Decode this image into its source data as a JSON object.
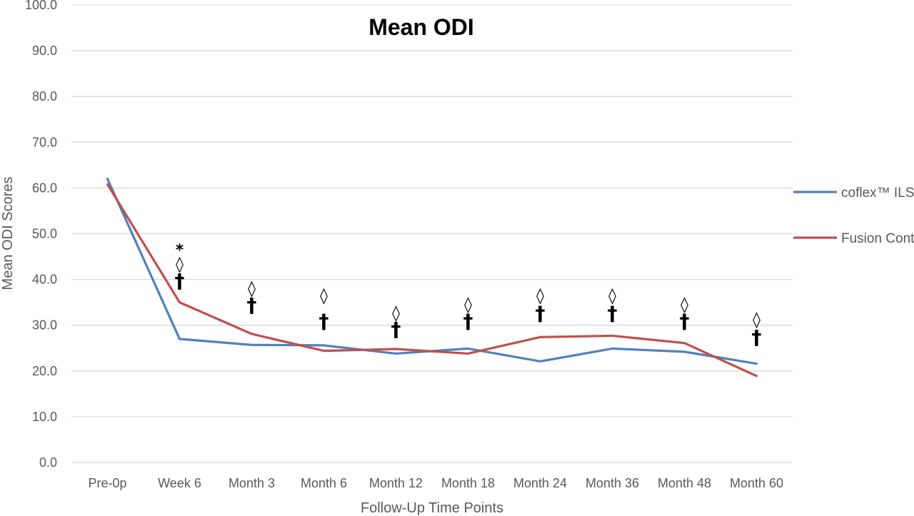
{
  "chart_data": {
    "type": "line",
    "title": "Mean ODI",
    "xlabel": "Follow-Up Time Points",
    "ylabel": "Mean ODI Scores",
    "ylim": [
      0,
      100
    ],
    "y_ticks": [
      "0.0",
      "10.0",
      "20.0",
      "30.0",
      "40.0",
      "50.0",
      "60.0",
      "70.0",
      "80.0",
      "90.0",
      "100.0"
    ],
    "grid": true,
    "legend_position": "right",
    "categories": [
      "Pre-0p",
      "Week 6",
      "Month 3",
      "Month 6",
      "Month 12",
      "Month 18",
      "Month 24",
      "Month 36",
      "Month 48",
      "Month 60"
    ],
    "series": [
      {
        "name": "coflex™ ILS",
        "color": "#4f81bd",
        "values": [
          62.0,
          27.0,
          25.7,
          25.6,
          23.8,
          24.9,
          22.1,
          24.9,
          24.2,
          21.6
        ]
      },
      {
        "name": "Fusion Control",
        "color": "#c0504d",
        "values": [
          60.8,
          35.0,
          28.1,
          24.4,
          24.8,
          23.8,
          27.4,
          27.7,
          26.1,
          18.9
        ]
      }
    ],
    "annotations": [
      {
        "category": "Week 6",
        "symbols": [
          {
            "text": "*",
            "y": 45.3
          },
          {
            "text": "◊",
            "y": 42.2
          },
          {
            "text": "†",
            "y": 38.2
          }
        ]
      },
      {
        "category": "Month 3",
        "symbols": [
          {
            "text": "◊",
            "y": 36.9
          },
          {
            "text": "†",
            "y": 32.9
          }
        ]
      },
      {
        "category": "Month 6",
        "symbols": [
          {
            "text": "◊",
            "y": 35.3
          },
          {
            "text": "†",
            "y": 29.4
          }
        ]
      },
      {
        "category": "Month 12",
        "symbols": [
          {
            "text": "◊",
            "y": 31.5
          },
          {
            "text": "†",
            "y": 27.6
          }
        ]
      },
      {
        "category": "Month 18",
        "symbols": [
          {
            "text": "◊",
            "y": 33.4
          },
          {
            "text": "†",
            "y": 29.4
          }
        ]
      },
      {
        "category": "Month 24",
        "symbols": [
          {
            "text": "◊",
            "y": 35.3
          },
          {
            "text": "†",
            "y": 31.1
          }
        ]
      },
      {
        "category": "Month 36",
        "symbols": [
          {
            "text": "◊",
            "y": 35.3
          },
          {
            "text": "†",
            "y": 31.1
          }
        ]
      },
      {
        "category": "Month 48",
        "symbols": [
          {
            "text": "◊",
            "y": 33.4
          },
          {
            "text": "†",
            "y": 29.4
          }
        ]
      },
      {
        "category": "Month 60",
        "symbols": [
          {
            "text": "◊",
            "y": 30.1
          },
          {
            "text": "†",
            "y": 25.9
          }
        ]
      }
    ]
  }
}
